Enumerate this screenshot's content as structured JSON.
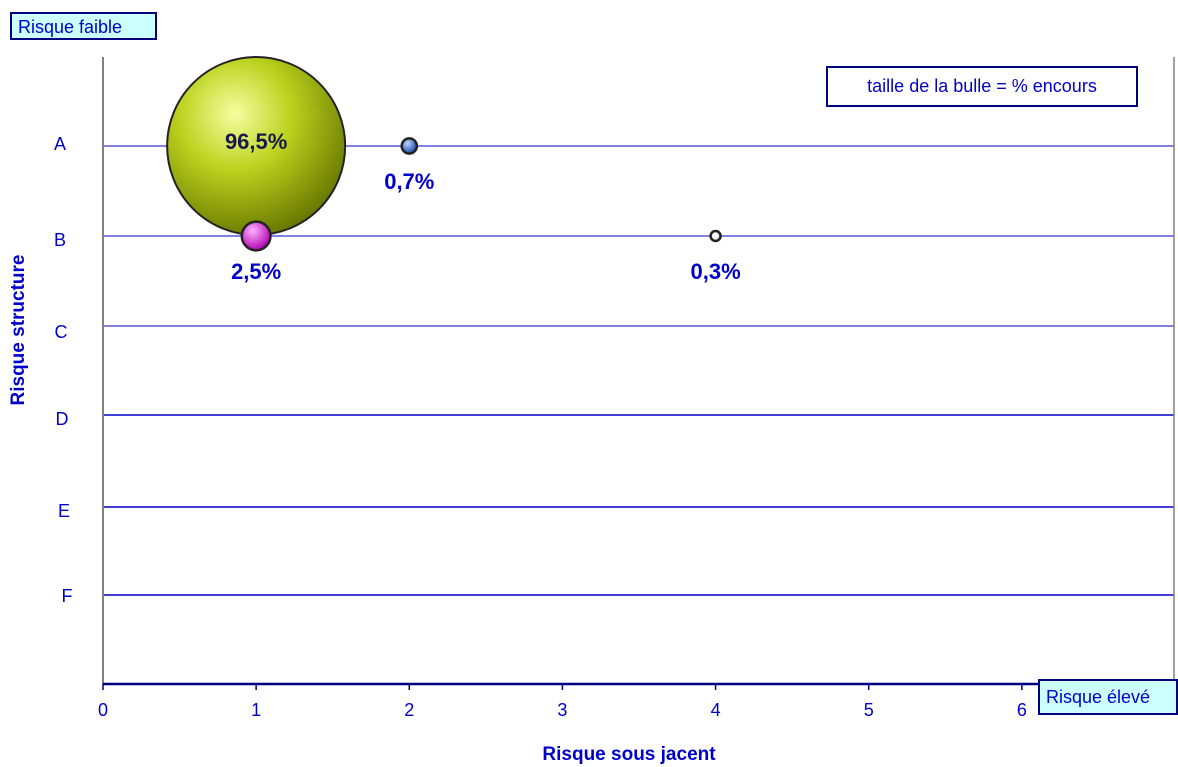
{
  "chart_data": {
    "type": "bubble",
    "corner_labels": {
      "low": "Risque faible",
      "high": "Risque élevé"
    },
    "legend": "taille de la bulle = % encours",
    "xlabel": "Risque sous jacent",
    "ylabel": "Risque structure",
    "xlim": [
      0,
      7
    ],
    "x_ticks": [
      0,
      1,
      2,
      3,
      4,
      5,
      6
    ],
    "y_categories": [
      "A",
      "B",
      "C",
      "D",
      "E",
      "F"
    ],
    "points": [
      {
        "x": 1,
        "y": "A",
        "value": 96.5,
        "label": "96,5%",
        "color": "#b8cc1a"
      },
      {
        "x": 2,
        "y": "A",
        "value": 0.7,
        "label": "0,7%",
        "color": "#3366cc"
      },
      {
        "x": 1,
        "y": "B",
        "value": 2.5,
        "label": "2,5%",
        "color": "#e600e6"
      },
      {
        "x": 4,
        "y": "B",
        "value": 0.3,
        "label": "0,3%",
        "color": "#ffffff"
      }
    ],
    "colors": {
      "axis_text": "#0000cc",
      "gridline": "#0000cc",
      "axis_line": "#808080"
    }
  }
}
